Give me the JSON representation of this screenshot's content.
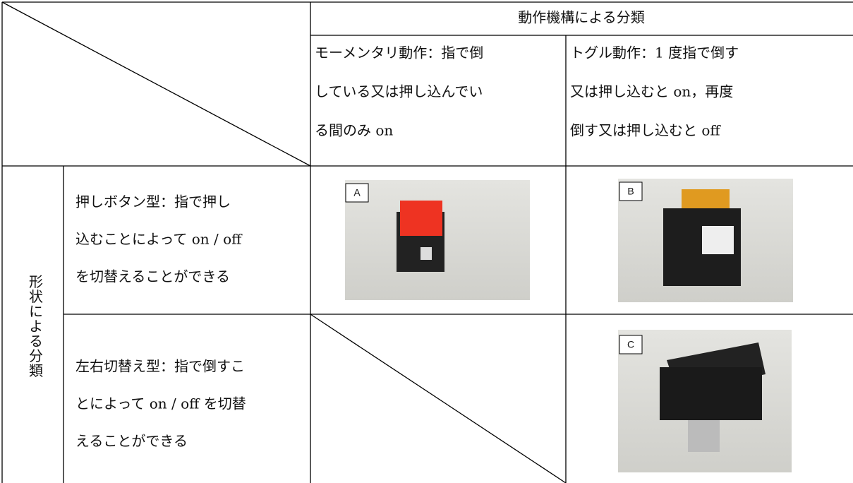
{
  "table": {
    "header": {
      "group": "動作機構による分類",
      "columns": [
        {
          "lines": [
            "モーメンタリ動作：指で倒",
            "している又は押し込んでい",
            "る間のみ on"
          ]
        },
        {
          "lines": [
            "トグル動作：1 度指で倒す",
            "又は押し込むと on，再度",
            "倒す又は押し込むと off"
          ]
        }
      ]
    },
    "row_group": "形状による分類",
    "rows": [
      {
        "lines": [
          "押しボタン型：指で押し",
          "込むことによって on / off",
          "を切替えることができる"
        ],
        "images": [
          "A",
          "B"
        ]
      },
      {
        "lines": [
          "左右切替え型：指で倒すこ",
          "とによって on / off を切替",
          "えることができる"
        ],
        "images": [
          "C"
        ]
      }
    ]
  }
}
